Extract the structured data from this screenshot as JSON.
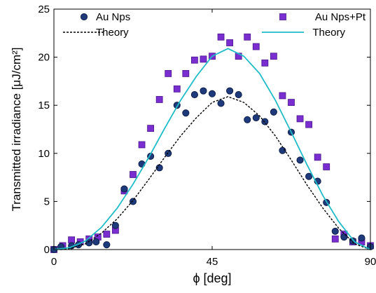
{
  "chart_data": {
    "type": "scatter",
    "xlabel": "ϕ [deg]",
    "ylabel": "Transmitted irradiance [μJ/cm²]",
    "xlim": [
      0,
      90
    ],
    "ylim": [
      0,
      25
    ],
    "xticks": [
      0,
      45,
      90
    ],
    "yticks": [
      0,
      5,
      10,
      15,
      20,
      25
    ],
    "grid": false,
    "legend": {
      "left_placement": "top-left",
      "right_placement": "top-right"
    },
    "series": [
      {
        "name": "Au Nps",
        "kind": "markers",
        "marker": "circle",
        "color": "#1f3a7a",
        "x": [
          0,
          2,
          5,
          7,
          10,
          12,
          15,
          17.5,
          20,
          22.5,
          25,
          27.5,
          30,
          32.5,
          35,
          37.5,
          40,
          42.5,
          45,
          47.5,
          50,
          52.5,
          55,
          57.5,
          60,
          62.5,
          65,
          67.5,
          70,
          72.5,
          75,
          77.5,
          80,
          82.5,
          85,
          87.5,
          90
        ],
        "y": [
          0,
          0.3,
          0.4,
          0.5,
          0.7,
          0.8,
          0.5,
          2.5,
          6.3,
          5.0,
          8.9,
          9.7,
          8.5,
          10.0,
          15.0,
          14.2,
          16.1,
          16.5,
          16.2,
          15.2,
          16.5,
          16.1,
          13.5,
          13.7,
          13.3,
          14.3,
          10.3,
          12.2,
          9.3,
          7.6,
          7.1,
          4.9,
          1.9,
          1.3,
          0.9,
          1.2,
          0.3
        ]
      },
      {
        "name": "Au Nps+Pt",
        "kind": "markers",
        "marker": "square",
        "color": "#7a2ed0",
        "x": [
          0,
          2.5,
          5,
          7.5,
          10,
          12.5,
          15,
          17.5,
          20,
          22.5,
          25,
          27.5,
          30,
          32.5,
          35,
          37.5,
          40,
          42.5,
          45,
          47.5,
          50,
          52.5,
          55,
          57.5,
          60,
          62.5,
          65,
          67.5,
          70,
          72.5,
          75,
          77.5,
          80,
          82.5,
          85,
          87.5,
          90
        ],
        "y": [
          0,
          0.4,
          1.0,
          0.8,
          1.1,
          1.3,
          1.6,
          2.0,
          6.1,
          7.8,
          10.9,
          12.6,
          15.6,
          18.3,
          16.7,
          18.3,
          19.7,
          19.8,
          20.1,
          22.1,
          21.5,
          20.1,
          22.1,
          21.1,
          19.4,
          20.1,
          16.0,
          15.3,
          13.6,
          13.0,
          9.6,
          8.6,
          1.1,
          1.6,
          0.8,
          0.8,
          0.4
        ]
      },
      {
        "name": "Theory",
        "kind": "line",
        "style": "dashed",
        "color": "#000000",
        "peak": 16.0,
        "x": [
          0,
          4.5,
          9,
          13.5,
          18,
          22.5,
          27,
          31.5,
          36,
          40.5,
          45,
          49.5,
          54,
          58.5,
          63,
          67.5,
          72,
          76.5,
          81,
          85.5,
          90
        ],
        "y": [
          0,
          0.1,
          0.6,
          1.7,
          3.2,
          5.1,
          7.3,
          9.6,
          11.8,
          13.7,
          15.3,
          15.9,
          15.3,
          13.9,
          11.8,
          9.3,
          6.7,
          4.3,
          2.2,
          0.6,
          0
        ]
      },
      {
        "name": "Theory",
        "kind": "line",
        "style": "solid",
        "color": "#1fbcc8",
        "peak": 21.0,
        "x": [
          0,
          4.5,
          9,
          13.5,
          18,
          22.5,
          27,
          31.5,
          36,
          40.5,
          45,
          49.5,
          54,
          58.5,
          63,
          67.5,
          72,
          76.5,
          81,
          85.5,
          90
        ],
        "y": [
          0,
          0.2,
          0.9,
          2.3,
          4.3,
          6.8,
          9.6,
          12.6,
          15.5,
          18.0,
          20.1,
          20.9,
          20.1,
          18.3,
          15.5,
          12.2,
          8.8,
          5.6,
          2.9,
          0.8,
          0
        ]
      }
    ]
  }
}
